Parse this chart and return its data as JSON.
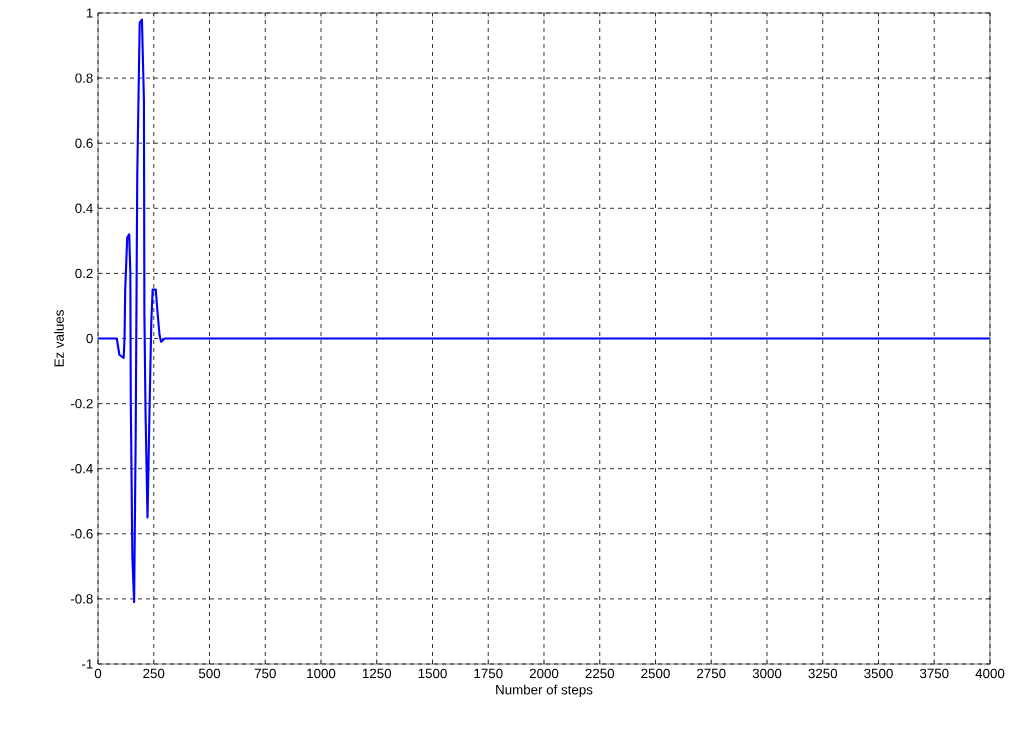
{
  "chart_data": {
    "type": "line",
    "xlabel": "Number of steps",
    "ylabel": "Ez values",
    "x": [
      0,
      84,
      96,
      115,
      119,
      122,
      131,
      140,
      145,
      147,
      154,
      162,
      169,
      176,
      187,
      197,
      206,
      208,
      213,
      222,
      231,
      239,
      245,
      259,
      267,
      276,
      283,
      300,
      4000
    ],
    "series": [
      {
        "color": "#0000ff",
        "values": [
          0,
          0,
          -0.05,
          -0.06,
          0,
          0.15,
          0.31,
          0.32,
          0.2,
          -0.19,
          -0.67,
          -0.81,
          -0.3,
          0.5,
          0.97,
          0.98,
          0.73,
          0.08,
          -0.22,
          -0.55,
          -0.22,
          0.05,
          0.15,
          0.15,
          0.08,
          0.01,
          -0.01,
          0,
          0
        ]
      }
    ],
    "xlim": [
      0,
      4000
    ],
    "ylim": [
      -1,
      1
    ],
    "xticks": [
      0,
      250,
      500,
      750,
      1000,
      1250,
      1500,
      1750,
      2000,
      2250,
      2500,
      2750,
      3000,
      3250,
      3500,
      3750,
      4000
    ],
    "yticks": [
      -1,
      -0.8,
      -0.6,
      -0.4,
      -0.2,
      0,
      0.2,
      0.4,
      0.6,
      0.8,
      1
    ],
    "grid": true,
    "line_style": "solid",
    "marker": "none"
  }
}
